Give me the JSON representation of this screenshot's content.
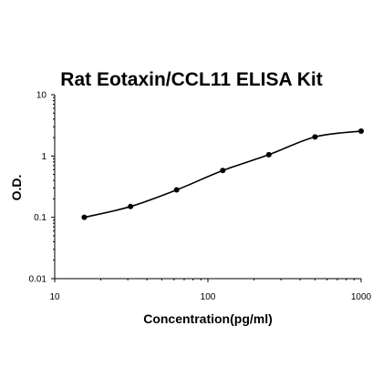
{
  "chart_data": {
    "type": "scatter",
    "title": "Rat Eotaxin/CCL11 ELISA Kit",
    "xlabel": "Concentration(pg/ml)",
    "ylabel": "O.D.",
    "xscale": "log",
    "yscale": "log",
    "xlim": [
      10,
      1000
    ],
    "ylim": [
      0.01,
      10
    ],
    "xticks": [
      "10",
      "100",
      "1000"
    ],
    "yticks": [
      "10",
      "1",
      "0.1",
      "0.01"
    ],
    "grid": false,
    "series": [
      {
        "x": [
          15.6,
          31.25,
          62.5,
          125,
          250,
          500,
          1000
        ],
        "y": [
          0.1,
          0.15,
          0.28,
          0.58,
          1.05,
          2.05,
          2.55
        ],
        "fit_curve": true
      }
    ]
  }
}
